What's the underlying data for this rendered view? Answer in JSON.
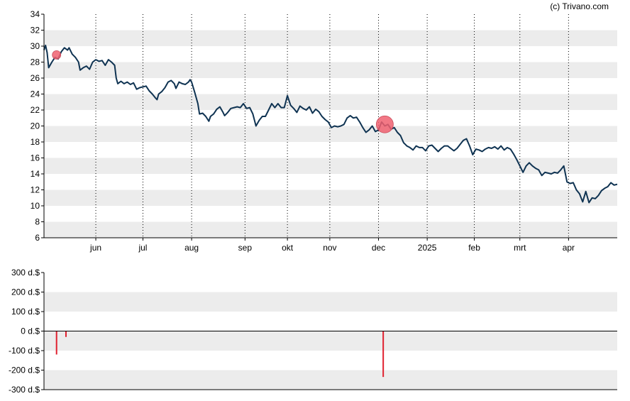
{
  "copyright": "(c) Trivano.com",
  "colors": {
    "price_line": "#0f3352",
    "band": "#ececec",
    "grid_vertical": "#000000",
    "marker": "#f06070",
    "bar": "#e0202f",
    "axis": "#000000"
  },
  "chart_data": [
    {
      "type": "line",
      "name": "price",
      "x_domain": [
        0,
        365
      ],
      "ylim": [
        6,
        34
      ],
      "yticks": [
        "6",
        "8",
        "10",
        "12",
        "14",
        "16",
        "18",
        "20",
        "22",
        "24",
        "26",
        "28",
        "30",
        "32",
        "34"
      ],
      "xticks": [
        {
          "x": 33,
          "label": "jun"
        },
        {
          "x": 63,
          "label": "jul"
        },
        {
          "x": 94,
          "label": "aug"
        },
        {
          "x": 128,
          "label": "sep"
        },
        {
          "x": 155,
          "label": "okt"
        },
        {
          "x": 182,
          "label": "nov"
        },
        {
          "x": 213,
          "label": "dec"
        },
        {
          "x": 244,
          "label": "2025"
        },
        {
          "x": 274,
          "label": "feb"
        },
        {
          "x": 303,
          "label": "mrt"
        },
        {
          "x": 334,
          "label": "apr"
        }
      ],
      "points": [
        [
          0,
          29.5
        ],
        [
          1,
          30.1
        ],
        [
          2,
          29.2
        ],
        [
          3,
          27.3
        ],
        [
          5,
          28.0
        ],
        [
          7,
          28.6
        ],
        [
          9,
          28.4
        ],
        [
          11,
          29.3
        ],
        [
          13,
          29.8
        ],
        [
          15,
          29.5
        ],
        [
          16,
          29.8
        ],
        [
          18,
          29.0
        ],
        [
          20,
          28.6
        ],
        [
          22,
          28.0
        ],
        [
          23,
          27.0
        ],
        [
          25,
          27.3
        ],
        [
          27,
          27.5
        ],
        [
          29,
          27.1
        ],
        [
          31,
          28.0
        ],
        [
          33,
          28.3
        ],
        [
          35,
          28.1
        ],
        [
          37,
          28.2
        ],
        [
          39,
          27.6
        ],
        [
          41,
          28.3
        ],
        [
          43,
          28.0
        ],
        [
          45,
          27.6
        ],
        [
          46,
          26.0
        ],
        [
          47,
          25.3
        ],
        [
          49,
          25.6
        ],
        [
          51,
          25.3
        ],
        [
          53,
          25.5
        ],
        [
          55,
          25.2
        ],
        [
          57,
          25.4
        ],
        [
          59,
          24.6
        ],
        [
          61,
          24.8
        ],
        [
          63,
          24.9
        ],
        [
          65,
          25.0
        ],
        [
          67,
          24.4
        ],
        [
          69,
          24.0
        ],
        [
          71,
          23.5
        ],
        [
          72,
          23.3
        ],
        [
          73,
          24.0
        ],
        [
          75,
          24.3
        ],
        [
          77,
          24.8
        ],
        [
          79,
          25.5
        ],
        [
          81,
          25.7
        ],
        [
          83,
          25.3
        ],
        [
          84,
          24.7
        ],
        [
          86,
          25.5
        ],
        [
          88,
          25.3
        ],
        [
          90,
          25.2
        ],
        [
          92,
          25.5
        ],
        [
          93,
          25.8
        ],
        [
          94,
          25.5
        ],
        [
          96,
          24.2
        ],
        [
          98,
          22.8
        ],
        [
          99,
          21.5
        ],
        [
          101,
          21.6
        ],
        [
          103,
          21.2
        ],
        [
          105,
          20.6
        ],
        [
          106,
          21.2
        ],
        [
          108,
          21.5
        ],
        [
          110,
          22.1
        ],
        [
          112,
          22.4
        ],
        [
          114,
          21.7
        ],
        [
          115,
          21.3
        ],
        [
          117,
          21.7
        ],
        [
          119,
          22.2
        ],
        [
          121,
          22.3
        ],
        [
          123,
          22.4
        ],
        [
          125,
          22.3
        ],
        [
          127,
          22.8
        ],
        [
          129,
          22.2
        ],
        [
          131,
          22.3
        ],
        [
          133,
          21.5
        ],
        [
          135,
          20.0
        ],
        [
          137,
          20.7
        ],
        [
          139,
          21.2
        ],
        [
          141,
          21.2
        ],
        [
          143,
          22.0
        ],
        [
          145,
          22.8
        ],
        [
          147,
          22.3
        ],
        [
          149,
          22.8
        ],
        [
          151,
          22.3
        ],
        [
          153,
          22.3
        ],
        [
          155,
          23.8
        ],
        [
          157,
          22.6
        ],
        [
          159,
          22.2
        ],
        [
          161,
          21.7
        ],
        [
          163,
          22.5
        ],
        [
          165,
          22.2
        ],
        [
          167,
          22.0
        ],
        [
          169,
          22.4
        ],
        [
          171,
          21.6
        ],
        [
          173,
          22.1
        ],
        [
          175,
          21.8
        ],
        [
          177,
          21.2
        ],
        [
          179,
          20.8
        ],
        [
          181,
          20.5
        ],
        [
          183,
          19.8
        ],
        [
          185,
          20.0
        ],
        [
          187,
          19.9
        ],
        [
          189,
          20.0
        ],
        [
          191,
          20.2
        ],
        [
          193,
          21.0
        ],
        [
          195,
          21.3
        ],
        [
          197,
          21.0
        ],
        [
          199,
          21.1
        ],
        [
          201,
          20.5
        ],
        [
          203,
          19.8
        ],
        [
          205,
          19.2
        ],
        [
          207,
          19.5
        ],
        [
          209,
          20.0
        ],
        [
          211,
          19.3
        ],
        [
          213,
          19.5
        ],
        [
          215,
          20.5
        ],
        [
          217,
          20.0
        ],
        [
          219,
          20.2
        ],
        [
          221,
          19.6
        ],
        [
          223,
          19.8
        ],
        [
          225,
          19.2
        ],
        [
          227,
          18.8
        ],
        [
          229,
          17.9
        ],
        [
          231,
          17.5
        ],
        [
          233,
          17.3
        ],
        [
          235,
          17.0
        ],
        [
          237,
          17.5
        ],
        [
          239,
          17.3
        ],
        [
          241,
          17.3
        ],
        [
          243,
          16.9
        ],
        [
          245,
          17.5
        ],
        [
          247,
          17.6
        ],
        [
          249,
          17.2
        ],
        [
          251,
          16.8
        ],
        [
          253,
          17.2
        ],
        [
          255,
          17.5
        ],
        [
          257,
          17.5
        ],
        [
          259,
          17.2
        ],
        [
          261,
          16.9
        ],
        [
          263,
          17.2
        ],
        [
          265,
          17.7
        ],
        [
          267,
          18.2
        ],
        [
          269,
          18.4
        ],
        [
          271,
          17.5
        ],
        [
          273,
          16.4
        ],
        [
          275,
          17.1
        ],
        [
          277,
          17.0
        ],
        [
          279,
          16.8
        ],
        [
          281,
          17.1
        ],
        [
          283,
          17.3
        ],
        [
          285,
          17.2
        ],
        [
          287,
          17.4
        ],
        [
          289,
          17.1
        ],
        [
          291,
          17.5
        ],
        [
          293,
          17.0
        ],
        [
          295,
          17.3
        ],
        [
          297,
          17.1
        ],
        [
          299,
          16.5
        ],
        [
          301,
          15.8
        ],
        [
          303,
          15.0
        ],
        [
          305,
          14.2
        ],
        [
          307,
          15.0
        ],
        [
          309,
          15.4
        ],
        [
          311,
          15.0
        ],
        [
          313,
          14.7
        ],
        [
          315,
          14.5
        ],
        [
          317,
          13.8
        ],
        [
          319,
          14.2
        ],
        [
          321,
          14.1
        ],
        [
          323,
          14.0
        ],
        [
          325,
          14.2
        ],
        [
          327,
          14.1
        ],
        [
          329,
          14.5
        ],
        [
          331,
          15.0
        ],
        [
          333,
          13.0
        ],
        [
          335,
          12.8
        ],
        [
          337,
          12.9
        ],
        [
          339,
          12.0
        ],
        [
          341,
          11.5
        ],
        [
          342,
          11.0
        ],
        [
          343,
          10.5
        ],
        [
          345,
          11.8
        ],
        [
          347,
          10.4
        ],
        [
          349,
          11.0
        ],
        [
          351,
          10.9
        ],
        [
          353,
          11.3
        ],
        [
          355,
          11.9
        ],
        [
          357,
          12.2
        ],
        [
          359,
          12.4
        ],
        [
          361,
          12.9
        ],
        [
          363,
          12.6
        ],
        [
          365,
          12.7
        ]
      ],
      "markers": [
        {
          "x": 8,
          "y": 28.9,
          "size": "small"
        },
        {
          "x": 217,
          "y": 20.2,
          "size": "large"
        }
      ]
    },
    {
      "type": "bar",
      "name": "transactions",
      "x_domain": [
        0,
        365
      ],
      "ylim": [
        -300,
        300
      ],
      "yticks": [
        "-300 d.$",
        "-200 d.$",
        "-100 d.$",
        "0 d.$",
        "100 d.$",
        "200 d.$",
        "300 d.$"
      ],
      "ytick_values": [
        -300,
        -200,
        -100,
        0,
        100,
        200,
        300
      ],
      "bars": [
        {
          "x": 8,
          "value": -120
        },
        {
          "x": 14,
          "value": -30
        },
        {
          "x": 216,
          "value": -235
        }
      ]
    }
  ]
}
